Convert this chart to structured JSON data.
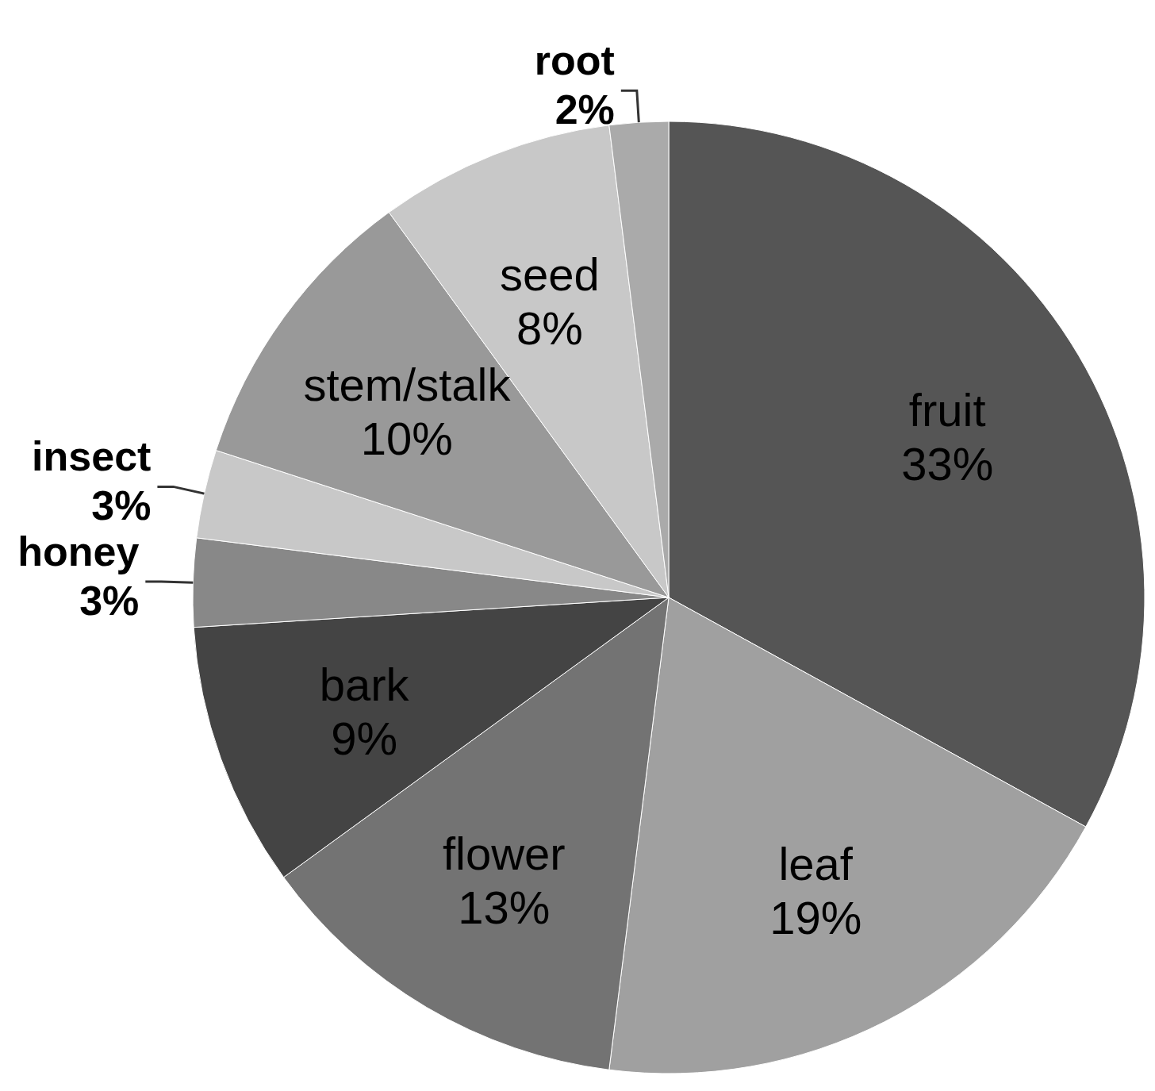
{
  "chart_data": {
    "type": "pie",
    "categories": [
      "fruit",
      "leaf",
      "flower",
      "bark",
      "honey",
      "insect",
      "stem/stalk",
      "seed",
      "root"
    ],
    "values": [
      33,
      19,
      13,
      9,
      3,
      3,
      10,
      8,
      2
    ],
    "colors": [
      "#555555",
      "#a0a0a0",
      "#737373",
      "#444444",
      "#888888",
      "#c8c8c8",
      "#999999",
      "#c8c8c8",
      "#aaaaaa"
    ],
    "value_labels": [
      "33%",
      "19%",
      "13%",
      "9%",
      "3%",
      "3%",
      "10%",
      "8%",
      "2%"
    ],
    "legend": false
  }
}
